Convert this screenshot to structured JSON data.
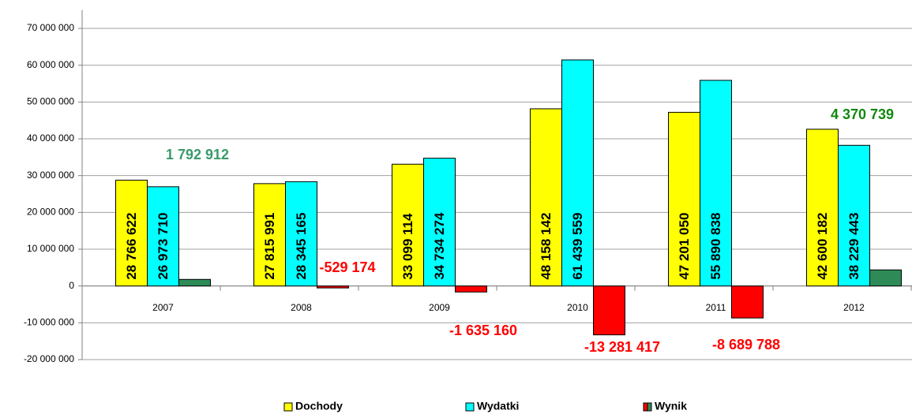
{
  "chart_data": {
    "type": "bar",
    "categories": [
      "2007",
      "2008",
      "2009",
      "2010",
      "2011",
      "2012"
    ],
    "series": [
      {
        "name": "Dochody",
        "color": "#ffff00",
        "values": [
          28766622,
          27815991,
          33099114,
          48158142,
          47201050,
          42600182
        ],
        "value_labels": [
          "28 766 622",
          "27 815 991",
          "33 099 114",
          "48 158 142",
          "47 201 050",
          "42 600 182"
        ]
      },
      {
        "name": "Wydatki",
        "color": "#00ffff",
        "values": [
          26973710,
          28345165,
          34734274,
          61439559,
          55890838,
          38229443
        ],
        "value_labels": [
          "26 973 710",
          "28 345 165",
          "34 734 274",
          "61 439 559",
          "55 890 838",
          "38 229 443"
        ]
      },
      {
        "name": "Wynik",
        "color": "#2e8b57",
        "negative_color": "#ff0000",
        "values": [
          1792912,
          -529174,
          -1635160,
          -13281417,
          -8689788,
          4370739
        ],
        "value_labels": [
          "1 792 912",
          "-529 174",
          "-1 635 160",
          "-13 281 417",
          "-8 689 788",
          "4 370 739"
        ]
      }
    ],
    "ylim": [
      -20000000,
      75000000
    ],
    "yticks": [
      {
        "value": -20000000,
        "label": "-20 000 000"
      },
      {
        "value": -10000000,
        "label": "-10 000 000"
      },
      0,
      {
        "value": 10000000,
        "label": "10 000 000"
      },
      {
        "value": 20000000,
        "label": "20 000 000"
      },
      {
        "value": 30000000,
        "label": "30 000 000"
      },
      {
        "value": 40000000,
        "label": "40 000 000"
      },
      {
        "value": 50000000,
        "label": "50 000 000"
      },
      {
        "value": 60000000,
        "label": "60 000 000"
      },
      {
        "value": 70000000,
        "label": "70 000 000"
      }
    ],
    "grid": true,
    "legend": "bottom"
  }
}
